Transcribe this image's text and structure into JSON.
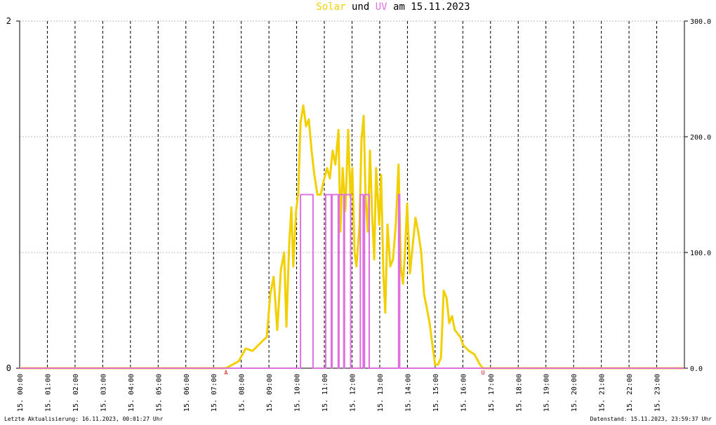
{
  "chart_data": {
    "type": "line",
    "title_joiner": "und",
    "title_suffix": "am 15.11.2023",
    "xlim": [
      0,
      24
    ],
    "xticks": [
      {
        "value": 0,
        "label": "15. 00:00"
      },
      {
        "value": 1,
        "label": "15. 01:00"
      },
      {
        "value": 2,
        "label": "15. 02:00"
      },
      {
        "value": 3,
        "label": "15. 03:00"
      },
      {
        "value": 4,
        "label": "15. 04:00"
      },
      {
        "value": 5,
        "label": "15. 05:00"
      },
      {
        "value": 6,
        "label": "15. 06:00"
      },
      {
        "value": 7,
        "label": "15. 07:00"
      },
      {
        "value": 8,
        "label": "15. 08:00"
      },
      {
        "value": 9,
        "label": "15. 09:00"
      },
      {
        "value": 10,
        "label": "15. 10:00"
      },
      {
        "value": 11,
        "label": "15. 11:00"
      },
      {
        "value": 12,
        "label": "15. 12:00"
      },
      {
        "value": 13,
        "label": "15. 13:00"
      },
      {
        "value": 14,
        "label": "15. 14:00"
      },
      {
        "value": 15,
        "label": "15. 15:00"
      },
      {
        "value": 16,
        "label": "15. 16:00"
      },
      {
        "value": 17,
        "label": "15. 17:00"
      },
      {
        "value": 18,
        "label": "15. 18:00"
      },
      {
        "value": 19,
        "label": "15. 19:00"
      },
      {
        "value": 20,
        "label": "15. 20:00"
      },
      {
        "value": 21,
        "label": "15. 21:00"
      },
      {
        "value": 22,
        "label": "15. 22:00"
      },
      {
        "value": 23,
        "label": "15. 23:00"
      }
    ],
    "ylim": [
      0,
      2
    ],
    "yticks": [
      0,
      2
    ],
    "y2lim": [
      0,
      300
    ],
    "y2ticks": [
      {
        "value": 0,
        "label": "0.0"
      },
      {
        "value": 100,
        "label": "100.0"
      },
      {
        "value": 200,
        "label": "200.0"
      },
      {
        "value": 300,
        "label": "300.0"
      }
    ],
    "grid": true,
    "series": [
      {
        "name": "Solar",
        "color": "#f2d000",
        "axis": "y2",
        "x": [
          0,
          7.45,
          7.91,
          8.16,
          8.41,
          8.79,
          8.92,
          9.05,
          9.17,
          9.3,
          9.43,
          9.55,
          9.63,
          9.73,
          9.81,
          9.88,
          9.98,
          10.06,
          10.14,
          10.24,
          10.34,
          10.44,
          10.54,
          10.64,
          10.75,
          10.87,
          11.0,
          11.1,
          11.2,
          11.3,
          11.4,
          11.51,
          11.58,
          11.66,
          11.76,
          11.86,
          11.94,
          12.01,
          12.09,
          12.16,
          12.27,
          12.34,
          12.42,
          12.49,
          12.57,
          12.65,
          12.72,
          12.8,
          12.87,
          12.98,
          13.05,
          13.13,
          13.2,
          13.28,
          13.38,
          13.48,
          13.58,
          13.68,
          13.76,
          13.84,
          13.91,
          13.99,
          14.09,
          14.19,
          14.29,
          14.39,
          14.5,
          14.6,
          14.7,
          14.8,
          14.9,
          15.0,
          15.1,
          15.21,
          15.31,
          15.41,
          15.51,
          15.61,
          15.71,
          15.81,
          15.91,
          16.01,
          16.22,
          16.42,
          16.62,
          16.73,
          23.99
        ],
        "values": [
          0,
          0,
          6,
          17,
          15,
          24,
          27,
          64,
          79,
          33,
          85,
          100,
          36,
          106,
          139,
          88,
          136,
          152,
          212,
          227,
          209,
          215,
          188,
          167,
          150,
          150,
          164,
          173,
          164,
          188,
          176,
          206,
          118,
          173,
          136,
          206,
          148,
          173,
          100,
          88,
          124,
          197,
          218,
          148,
          118,
          188,
          136,
          94,
          173,
          124,
          167,
          82,
          48,
          124,
          88,
          94,
          124,
          176,
          88,
          73,
          100,
          142,
          82,
          106,
          130,
          118,
          100,
          64,
          52,
          39,
          21,
          3,
          3,
          9,
          67,
          61,
          39,
          45,
          33,
          30,
          27,
          20,
          15,
          12,
          3,
          0,
          0
        ]
      },
      {
        "name": "UV",
        "color": "#e070e0",
        "axis": "y",
        "x": [
          0,
          10.14,
          10.14,
          10.59,
          10.59,
          11.05,
          11.05,
          11.25,
          11.25,
          11.28,
          11.28,
          11.5,
          11.5,
          11.53,
          11.53,
          11.7,
          11.7,
          11.73,
          11.73,
          11.95,
          11.95,
          12.3,
          12.3,
          12.4,
          12.4,
          12.45,
          12.45,
          12.62,
          12.62,
          13.68,
          13.68,
          13.72,
          13.72,
          23.99
        ],
        "values": [
          0,
          0,
          1,
          1,
          0,
          0,
          1,
          1,
          0,
          0,
          1,
          1,
          0,
          0,
          1,
          1,
          0,
          0,
          1,
          1,
          0,
          0,
          1,
          1,
          0,
          0,
          1,
          1,
          0,
          0,
          1,
          1,
          0,
          0
        ]
      }
    ],
    "annotations": [
      {
        "x": 7.45,
        "text": "A"
      },
      {
        "x": 16.73,
        "text": "U"
      }
    ],
    "footer_left": "Letzte Aktualisierung: 16.11.2023, 00:01:27 Uhr",
    "footer_right": "Datenstand: 15.11.2023, 23:59:37 Uhr"
  }
}
